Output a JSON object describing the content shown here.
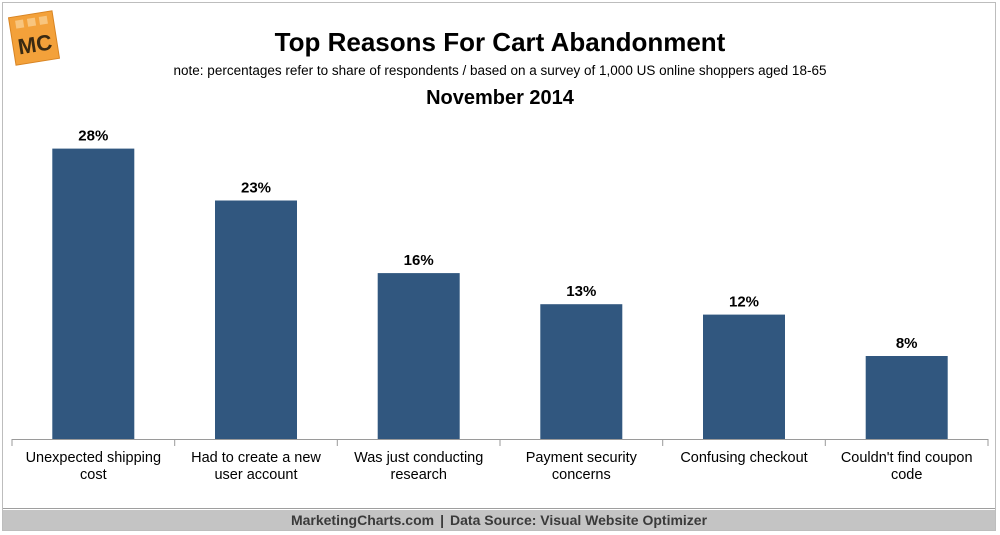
{
  "header": {
    "logo_text": "MC",
    "title": "Top Reasons For Cart Abandonment",
    "note": "note: percentages refer to share of respondents / based on a survey of 1,000 US online shoppers aged 18-65",
    "subtitle": "November 2014"
  },
  "footer": {
    "brand": "MarketingCharts.com",
    "separator": "|",
    "source": "Data Source: Visual Website Optimizer"
  },
  "colors": {
    "bar": "#31577f",
    "logo_bg": "#f3a13a",
    "axis": "#9a9a9a"
  },
  "chart_data": {
    "type": "bar",
    "title": "Top Reasons For Cart Abandonment",
    "subtitle": "November 2014",
    "categories": [
      [
        "Unexpected shipping",
        "cost"
      ],
      [
        "Had to create a new",
        "user account"
      ],
      [
        "Was just conducting",
        "research"
      ],
      [
        "Payment security",
        "concerns"
      ],
      [
        "Confusing checkout"
      ],
      [
        "Couldn't find coupon",
        "code"
      ]
    ],
    "values": [
      28,
      23,
      16,
      13,
      12,
      8
    ],
    "value_labels": [
      "28%",
      "23%",
      "16%",
      "13%",
      "12%",
      "8%"
    ],
    "xlabel": "",
    "ylabel": "",
    "ylim": [
      0,
      30
    ],
    "grid": false,
    "legend": "none"
  }
}
